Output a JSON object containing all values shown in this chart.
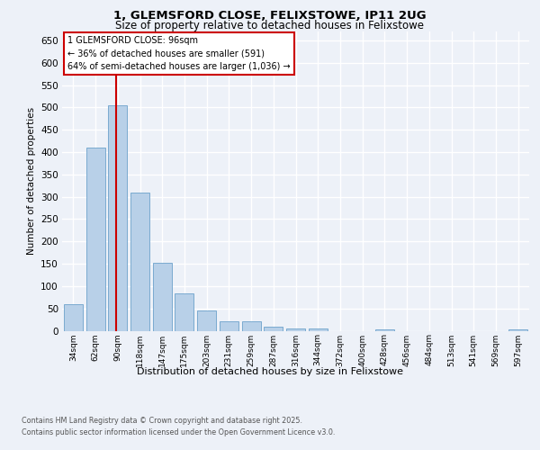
{
  "title_line1": "1, GLEMSFORD CLOSE, FELIXSTOWE, IP11 2UG",
  "title_line2": "Size of property relative to detached houses in Felixstowe",
  "xlabel": "Distribution of detached houses by size in Felixstowe",
  "ylabel": "Number of detached properties",
  "categories": [
    "34sqm",
    "62sqm",
    "90sqm",
    "118sqm",
    "147sqm",
    "175sqm",
    "203sqm",
    "231sqm",
    "259sqm",
    "287sqm",
    "316sqm",
    "344sqm",
    "372sqm",
    "400sqm",
    "428sqm",
    "456sqm",
    "484sqm",
    "513sqm",
    "541sqm",
    "569sqm",
    "597sqm"
  ],
  "values": [
    60,
    410,
    505,
    310,
    153,
    83,
    46,
    22,
    22,
    10,
    6,
    6,
    0,
    0,
    4,
    0,
    0,
    0,
    0,
    0,
    4
  ],
  "bar_color": "#b8d0e8",
  "bar_edge_color": "#7aaad0",
  "vline_color": "#cc0000",
  "vline_index": 1.92,
  "annotation_title": "1 GLEMSFORD CLOSE: 96sqm",
  "annotation_line2": "← 36% of detached houses are smaller (591)",
  "annotation_line3": "64% of semi-detached houses are larger (1,036) →",
  "annotation_box_edgecolor": "#cc0000",
  "ylim": [
    0,
    670
  ],
  "yticks": [
    0,
    50,
    100,
    150,
    200,
    250,
    300,
    350,
    400,
    450,
    500,
    550,
    600,
    650
  ],
  "bg_color": "#edf1f8",
  "grid_color": "#ffffff",
  "footer_line1": "Contains HM Land Registry data © Crown copyright and database right 2025.",
  "footer_line2": "Contains public sector information licensed under the Open Government Licence v3.0."
}
